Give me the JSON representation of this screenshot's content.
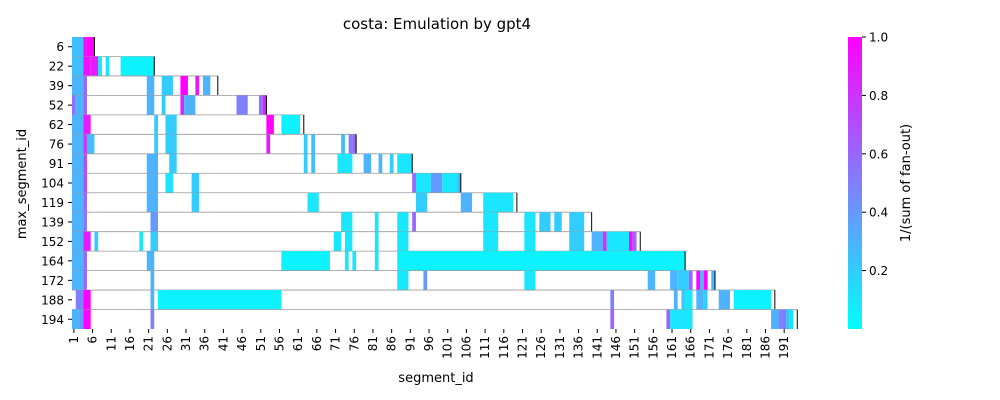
{
  "chart_data": {
    "type": "heatmap",
    "title": "costa: Emulation by gpt4",
    "xlabel": "segment_id",
    "ylabel": "max_segment_id",
    "x_range": [
      1,
      195
    ],
    "x_ticks": [
      1,
      6,
      11,
      16,
      21,
      26,
      31,
      36,
      41,
      46,
      51,
      56,
      61,
      66,
      71,
      76,
      81,
      86,
      91,
      96,
      101,
      106,
      111,
      116,
      121,
      126,
      131,
      136,
      141,
      146,
      151,
      156,
      161,
      166,
      171,
      176,
      181,
      186,
      191
    ],
    "y_categories": [
      "6",
      "22",
      "39",
      "52",
      "62",
      "76",
      "91",
      "104",
      "119",
      "139",
      "152",
      "164",
      "172",
      "188",
      "194"
    ],
    "colorbar": {
      "label": "1/(sum of fan-out)",
      "min": 0.0,
      "max": 1.0,
      "ticks": [
        "0.2",
        "0.4",
        "0.6",
        "0.8",
        "1.0"
      ],
      "tick_values": [
        0.2,
        0.4,
        0.6,
        0.8,
        1.0
      ],
      "colormap": "cool",
      "color_low": "#00ffff",
      "color_high": "#ff00ff"
    },
    "rows": [
      {
        "max": 6,
        "cells": [
          [
            1,
            3,
            0.25
          ],
          [
            4,
            4,
            0.95
          ],
          [
            5,
            6,
            1.0
          ]
        ]
      },
      {
        "max": 22,
        "cells": [
          [
            1,
            3,
            0.25
          ],
          [
            4,
            5,
            0.95
          ],
          [
            6,
            7,
            0.9
          ],
          [
            8,
            8,
            0.1
          ],
          [
            10,
            10,
            0.1
          ],
          [
            14,
            22,
            0.05
          ]
        ]
      },
      {
        "max": 39,
        "cells": [
          [
            1,
            3,
            0.3
          ],
          [
            4,
            4,
            0.6
          ],
          [
            21,
            22,
            0.3
          ],
          [
            25,
            27,
            0.2
          ],
          [
            30,
            31,
            1.0
          ],
          [
            34,
            34,
            0.9
          ],
          [
            36,
            37,
            0.3
          ]
        ]
      },
      {
        "max": 52,
        "cells": [
          [
            1,
            1,
            0.55
          ],
          [
            2,
            3,
            0.3
          ],
          [
            4,
            4,
            0.6
          ],
          [
            21,
            22,
            0.3
          ],
          [
            25,
            25,
            0.2
          ],
          [
            30,
            30,
            0.85
          ],
          [
            31,
            33,
            0.3
          ],
          [
            45,
            47,
            0.5
          ],
          [
            51,
            51,
            0.55
          ],
          [
            52,
            52,
            0.85
          ]
        ]
      },
      {
        "max": 62,
        "cells": [
          [
            1,
            3,
            0.3
          ],
          [
            4,
            5,
            0.9
          ],
          [
            23,
            23,
            0.2
          ],
          [
            26,
            28,
            0.2
          ],
          [
            53,
            54,
            1.0
          ],
          [
            57,
            61,
            0.05
          ]
        ]
      },
      {
        "max": 76,
        "cells": [
          [
            1,
            3,
            0.3
          ],
          [
            4,
            4,
            0.8
          ],
          [
            5,
            6,
            0.25
          ],
          [
            23,
            23,
            0.2
          ],
          [
            26,
            28,
            0.2
          ],
          [
            53,
            53,
            0.9
          ],
          [
            63,
            63,
            0.2
          ],
          [
            65,
            65,
            0.25
          ],
          [
            73,
            73,
            0.25
          ],
          [
            75,
            75,
            0.5
          ],
          [
            76,
            76,
            0.6
          ]
        ]
      },
      {
        "max": 91,
        "cells": [
          [
            1,
            3,
            0.3
          ],
          [
            4,
            4,
            0.7
          ],
          [
            21,
            23,
            0.3
          ],
          [
            27,
            28,
            0.2
          ],
          [
            63,
            63,
            0.2
          ],
          [
            65,
            65,
            0.25
          ],
          [
            72,
            75,
            0.1
          ],
          [
            79,
            80,
            0.3
          ],
          [
            83,
            83,
            0.3
          ],
          [
            86,
            86,
            0.2
          ],
          [
            88,
            91,
            0.1
          ]
        ]
      },
      {
        "max": 104,
        "cells": [
          [
            1,
            3,
            0.3
          ],
          [
            4,
            4,
            0.7
          ],
          [
            21,
            23,
            0.3
          ],
          [
            26,
            27,
            0.1
          ],
          [
            33,
            34,
            0.2
          ],
          [
            92,
            92,
            0.6
          ],
          [
            93,
            96,
            0.1
          ],
          [
            97,
            99,
            0.4
          ],
          [
            100,
            103,
            0.1
          ],
          [
            104,
            104,
            0.3
          ]
        ]
      },
      {
        "max": 119,
        "cells": [
          [
            1,
            3,
            0.3
          ],
          [
            4,
            4,
            0.6
          ],
          [
            21,
            23,
            0.3
          ],
          [
            33,
            34,
            0.2
          ],
          [
            64,
            66,
            0.1
          ],
          [
            93,
            95,
            0.2
          ],
          [
            105,
            107,
            0.3
          ],
          [
            111,
            118,
            0.1
          ]
        ]
      },
      {
        "max": 139,
        "cells": [
          [
            1,
            3,
            0.3
          ],
          [
            4,
            4,
            0.55
          ],
          [
            22,
            23,
            0.4
          ],
          [
            73,
            75,
            0.1
          ],
          [
            82,
            82,
            0.1
          ],
          [
            88,
            90,
            0.1
          ],
          [
            92,
            92,
            0.6
          ],
          [
            111,
            114,
            0.1
          ],
          [
            122,
            124,
            0.1
          ],
          [
            126,
            128,
            0.2
          ],
          [
            130,
            131,
            0.2
          ],
          [
            134,
            137,
            0.2
          ]
        ]
      },
      {
        "max": 152,
        "cells": [
          [
            1,
            3,
            0.3
          ],
          [
            4,
            5,
            0.9
          ],
          [
            7,
            7,
            0.2
          ],
          [
            19,
            19,
            0.1
          ],
          [
            22,
            23,
            0.2
          ],
          [
            71,
            72,
            0.1
          ],
          [
            74,
            75,
            0.1
          ],
          [
            82,
            82,
            0.1
          ],
          [
            88,
            90,
            0.1
          ],
          [
            111,
            114,
            0.1
          ],
          [
            122,
            124,
            0.1
          ],
          [
            134,
            137,
            0.2
          ],
          [
            140,
            142,
            0.3
          ],
          [
            143,
            143,
            0.8
          ],
          [
            144,
            149,
            0.1
          ],
          [
            150,
            150,
            0.95
          ],
          [
            151,
            151,
            0.6
          ]
        ]
      },
      {
        "max": 164,
        "cells": [
          [
            1,
            3,
            0.3
          ],
          [
            4,
            4,
            0.6
          ],
          [
            21,
            22,
            0.3
          ],
          [
            57,
            69,
            0.05
          ],
          [
            74,
            74,
            0.1
          ],
          [
            76,
            76,
            0.1
          ],
          [
            82,
            82,
            0.1
          ],
          [
            88,
            164,
            0.05
          ]
        ]
      },
      {
        "max": 172,
        "cells": [
          [
            1,
            3,
            0.3
          ],
          [
            4,
            4,
            0.6
          ],
          [
            22,
            22,
            0.3
          ],
          [
            88,
            90,
            0.1
          ],
          [
            95,
            95,
            0.4
          ],
          [
            122,
            124,
            0.1
          ],
          [
            155,
            156,
            0.3
          ],
          [
            161,
            162,
            0.3
          ],
          [
            163,
            165,
            0.2
          ],
          [
            166,
            166,
            0.6
          ],
          [
            168,
            168,
            1.0
          ],
          [
            169,
            169,
            0.3
          ],
          [
            170,
            170,
            1.0
          ],
          [
            172,
            172,
            0.3
          ]
        ]
      },
      {
        "max": 188,
        "cells": [
          [
            2,
            3,
            0.5
          ],
          [
            4,
            5,
            1.0
          ],
          [
            22,
            22,
            0.3
          ],
          [
            24,
            56,
            0.05
          ],
          [
            145,
            145,
            0.5
          ],
          [
            162,
            162,
            0.3
          ],
          [
            164,
            164,
            0.2
          ],
          [
            165,
            166,
            0.1
          ],
          [
            168,
            169,
            0.3
          ],
          [
            170,
            170,
            0.2
          ],
          [
            174,
            176,
            0.3
          ],
          [
            178,
            187,
            0.05
          ]
        ]
      },
      {
        "max": 194,
        "cells": [
          [
            1,
            2,
            0.3
          ],
          [
            3,
            3,
            0.4
          ],
          [
            4,
            5,
            1.0
          ],
          [
            22,
            22,
            0.5
          ],
          [
            145,
            145,
            0.6
          ],
          [
            160,
            160,
            0.6
          ],
          [
            161,
            166,
            0.1
          ],
          [
            188,
            189,
            0.3
          ],
          [
            190,
            191,
            0.5
          ],
          [
            192,
            192,
            0.25
          ],
          [
            193,
            193,
            0.1
          ]
        ]
      }
    ]
  }
}
